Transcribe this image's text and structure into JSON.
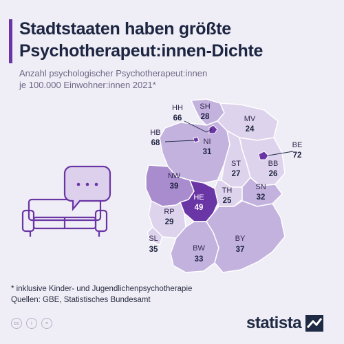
{
  "title": {
    "line1": "Stadtstaaten haben größte",
    "line2": "Psychotherapeut:innen-Dichte"
  },
  "subtitle": {
    "line1": "Anzahl psychologischer Psychotherapeut:innen",
    "line2": "je 100.000 Einwohner:innen 2021*"
  },
  "states": {
    "HH": {
      "code": "HH",
      "value": "66"
    },
    "SH": {
      "code": "SH",
      "value": "28"
    },
    "MV": {
      "code": "MV",
      "value": "24"
    },
    "HB": {
      "code": "HB",
      "value": "68"
    },
    "NI": {
      "code": "NI",
      "value": "31"
    },
    "BE": {
      "code": "BE",
      "value": "72"
    },
    "ST": {
      "code": "ST",
      "value": "27"
    },
    "BB": {
      "code": "BB",
      "value": "26"
    },
    "NW": {
      "code": "NW",
      "value": "39"
    },
    "TH": {
      "code": "TH",
      "value": "25"
    },
    "SN": {
      "code": "SN",
      "value": "32"
    },
    "HE": {
      "code": "HE",
      "value": "49"
    },
    "RP": {
      "code": "RP",
      "value": "29"
    },
    "SL": {
      "code": "SL",
      "value": "35"
    },
    "BY": {
      "code": "BY",
      "value": "37"
    },
    "BW": {
      "code": "BW",
      "value": "33"
    }
  },
  "footnote": {
    "line1": "* inklusive Kinder- und Jugendlichenpsychotherapie",
    "line2": "Quellen: GBE, Statistisches Bundesamt"
  },
  "brand": {
    "name": "statista"
  },
  "colors": {
    "accent": "#6a35a5",
    "highlight": "#6a35a5",
    "high": "#a98ccd",
    "mid": "#c3b2de",
    "low": "#ddd3ec",
    "background": "#efedf5"
  },
  "icons": [
    "couch-icon",
    "speech-bubble-icon",
    "cc-icon",
    "by-icon",
    "nd-icon",
    "statista-logo-icon"
  ]
}
